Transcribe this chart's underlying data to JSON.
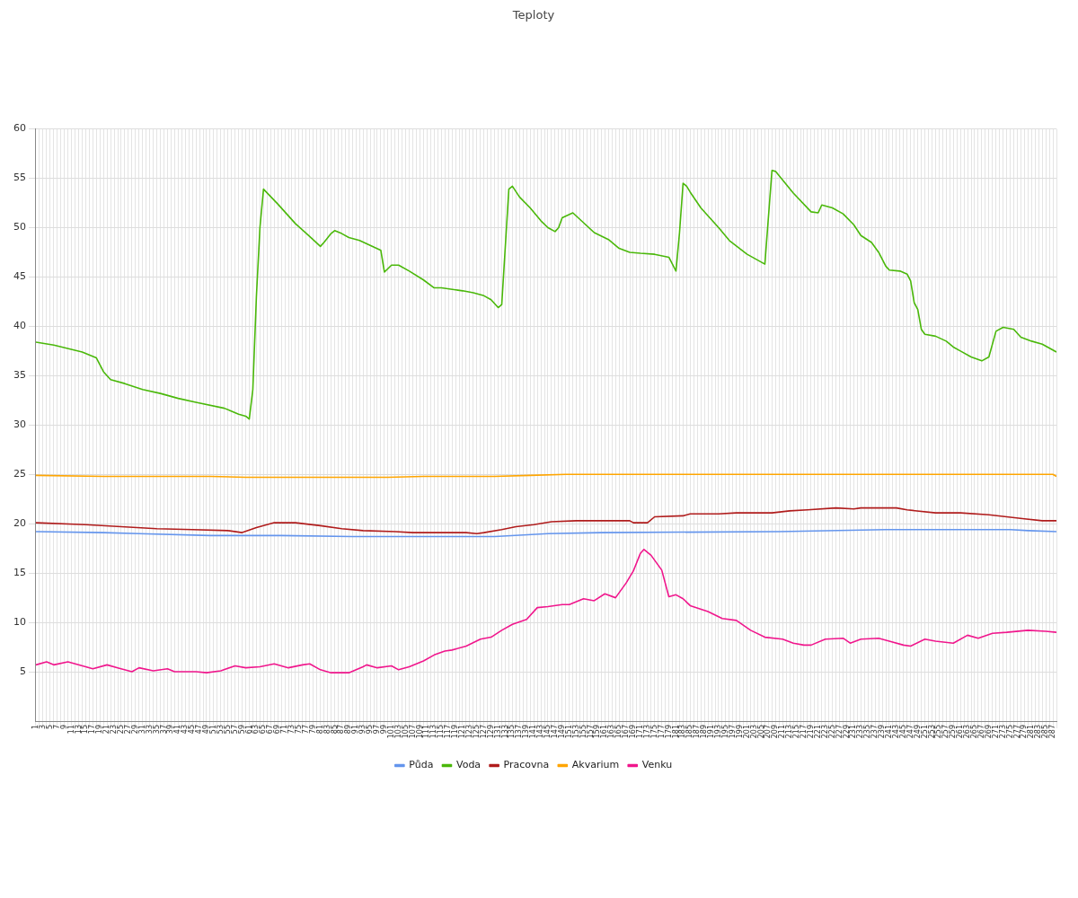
{
  "chart_data": {
    "type": "line",
    "title": "Teploty",
    "xlim": [
      1,
      288
    ],
    "ylim": [
      0,
      60
    ],
    "yticks": [
      5,
      10,
      15,
      20,
      25,
      30,
      35,
      40,
      45,
      50,
      55,
      60
    ],
    "xticks": [
      1,
      {
        "value": 2,
        "label": null
      },
      3,
      {
        "value": 4,
        "label": null
      },
      5,
      {
        "value": 6,
        "label": null
      },
      7,
      {
        "value": 8,
        "label": null
      },
      9,
      {
        "value": 10,
        "label": null
      },
      11,
      {
        "value": 12,
        "label": null
      },
      13,
      {
        "value": 14,
        "label": null
      },
      15,
      {
        "value": 16,
        "label": null
      },
      17,
      {
        "value": 18,
        "label": null
      },
      19,
      {
        "value": 20,
        "label": null
      },
      21,
      {
        "value": 22,
        "label": null
      },
      23,
      {
        "value": 24,
        "label": null
      },
      25,
      {
        "value": 26,
        "label": null
      },
      27,
      {
        "value": 28,
        "label": null
      },
      29,
      {
        "value": 30,
        "label": null
      },
      31,
      {
        "value": 32,
        "label": null
      },
      33,
      {
        "value": 34,
        "label": null
      },
      35,
      {
        "value": 36,
        "label": null
      },
      37,
      {
        "value": 38,
        "label": null
      },
      39,
      {
        "value": 40,
        "label": null
      },
      41,
      {
        "value": 42,
        "label": null
      },
      43,
      {
        "value": 44,
        "label": null
      },
      45,
      {
        "value": 46,
        "label": null
      },
      47,
      {
        "value": 48,
        "label": null
      },
      49,
      {
        "value": 50,
        "label": null
      },
      51,
      {
        "value": 52,
        "label": null
      },
      53,
      {
        "value": 54,
        "label": null
      },
      55,
      {
        "value": 56,
        "label": null
      },
      57,
      {
        "value": 58,
        "label": null
      },
      59,
      {
        "value": 60,
        "label": null
      },
      61,
      {
        "value": 62,
        "label": null
      },
      63,
      {
        "value": 64,
        "label": null
      },
      65,
      {
        "value": 66,
        "label": null
      },
      67,
      {
        "value": 68,
        "label": null
      },
      69,
      {
        "value": 70,
        "label": null
      },
      71,
      {
        "value": 72,
        "label": null
      },
      73,
      {
        "value": 74,
        "label": null
      },
      75,
      {
        "value": 76,
        "label": null
      },
      77,
      {
        "value": 78,
        "label": null
      },
      79,
      {
        "value": 80,
        "label": null
      },
      81,
      {
        "value": 82,
        "label": null
      },
      83,
      {
        "value": 84,
        "label": null
      },
      85,
      {
        "value": 86,
        "label": null
      },
      87,
      {
        "value": 88,
        "label": null
      },
      89,
      {
        "value": 90,
        "label": null
      },
      91,
      {
        "value": 92,
        "label": null
      },
      93,
      {
        "value": 94,
        "label": null
      },
      95,
      {
        "value": 96,
        "label": null
      },
      97,
      {
        "value": 98,
        "label": null
      },
      99,
      {
        "value": 100,
        "label": null
      },
      101,
      {
        "value": 102,
        "label": null
      },
      103,
      {
        "value": 104,
        "label": null
      },
      105,
      {
        "value": 106,
        "label": null
      },
      107,
      {
        "value": 108,
        "label": null
      },
      109,
      {
        "value": 110,
        "label": null
      },
      111,
      {
        "value": 112,
        "label": null
      },
      113,
      {
        "value": 114,
        "label": null
      },
      115,
      {
        "value": 116,
        "label": null
      },
      117,
      {
        "value": 118,
        "label": null
      },
      119,
      {
        "value": 120,
        "label": null
      },
      121,
      {
        "value": 122,
        "label": null
      },
      123,
      {
        "value": 124,
        "label": null
      },
      125,
      {
        "value": 126,
        "label": null
      },
      127,
      {
        "value": 128,
        "label": null
      },
      129,
      {
        "value": 130,
        "label": null
      },
      131,
      {
        "value": 132,
        "label": null
      },
      133,
      {
        "value": 134,
        "label": null
      },
      135,
      {
        "value": 136,
        "label": null
      },
      137,
      {
        "value": 138,
        "label": null
      },
      139,
      {
        "value": 140,
        "label": null
      },
      141,
      {
        "value": 142,
        "label": null
      },
      143,
      {
        "value": 144,
        "label": null
      },
      145,
      {
        "value": 146,
        "label": null
      },
      147,
      {
        "value": 148,
        "label": null
      },
      149,
      {
        "value": 150,
        "label": null
      },
      151,
      {
        "value": 152,
        "label": null
      },
      153,
      {
        "value": 154,
        "label": null
      },
      155,
      {
        "value": 156,
        "label": null
      },
      157,
      {
        "value": 158,
        "label": null
      },
      159,
      {
        "value": 160,
        "label": null
      },
      161,
      {
        "value": 162,
        "label": null
      },
      163,
      {
        "value": 164,
        "label": null
      },
      165,
      {
        "value": 166,
        "label": null
      },
      167,
      {
        "value": 168,
        "label": null
      },
      169,
      {
        "value": 170,
        "label": null
      },
      171,
      {
        "value": 172,
        "label": null
      },
      173,
      {
        "value": 174,
        "label": null
      },
      175,
      {
        "value": 176,
        "label": null
      },
      177,
      {
        "value": 178,
        "label": null
      },
      179,
      {
        "value": 180,
        "label": null
      },
      181,
      {
        "value": 182,
        "label": null
      },
      183,
      {
        "value": 184,
        "label": null
      },
      185,
      {
        "value": 186,
        "label": null
      },
      187,
      {
        "value": 188,
        "label": null
      },
      189,
      {
        "value": 190,
        "label": null
      },
      191,
      {
        "value": 192,
        "label": null
      },
      193,
      {
        "value": 194,
        "label": null
      },
      195,
      {
        "value": 196,
        "label": null
      },
      197,
      {
        "value": 198,
        "label": null
      },
      199,
      {
        "value": 200,
        "label": null
      },
      201,
      {
        "value": 202,
        "label": null
      },
      203,
      {
        "value": 204,
        "label": null
      },
      205,
      {
        "value": 206,
        "label": null
      },
      207,
      {
        "value": 208,
        "label": null
      },
      209,
      {
        "value": 210,
        "label": null
      },
      211,
      {
        "value": 212,
        "label": null
      },
      213,
      {
        "value": 214,
        "label": null
      },
      215,
      {
        "value": 216,
        "label": null
      },
      217,
      {
        "value": 218,
        "label": null
      },
      219,
      {
        "value": 220,
        "label": null
      },
      221,
      {
        "value": 222,
        "label": null
      },
      223,
      {
        "value": 224,
        "label": null
      },
      225,
      {
        "value": 226,
        "label": null
      },
      227,
      {
        "value": 228,
        "label": null
      },
      229,
      {
        "value": 230,
        "label": null
      },
      231,
      {
        "value": 232,
        "label": null
      },
      233,
      {
        "value": 234,
        "label": null
      },
      235,
      {
        "value": 236,
        "label": null
      },
      237,
      {
        "value": 238,
        "label": null
      },
      239,
      {
        "value": 240,
        "label": null
      },
      241,
      {
        "value": 242,
        "label": null
      },
      243,
      {
        "value": 244,
        "label": null
      },
      245,
      {
        "value": 246,
        "label": null
      },
      247,
      {
        "value": 248,
        "label": null
      },
      249,
      {
        "value": 250,
        "label": null
      },
      251,
      {
        "value": 252,
        "label": null
      },
      253,
      {
        "value": 254,
        "label": null
      },
      255,
      {
        "value": 256,
        "label": null
      },
      257,
      {
        "value": 258,
        "label": null
      },
      259,
      {
        "value": 260,
        "label": null
      },
      261,
      {
        "value": 262,
        "label": null
      },
      263,
      {
        "value": 264,
        "label": null
      },
      265,
      {
        "value": 266,
        "label": null
      },
      267,
      {
        "value": 268,
        "label": null
      },
      269,
      {
        "value": 270,
        "label": null
      },
      271,
      {
        "value": 272,
        "label": null
      },
      273,
      {
        "value": 274,
        "label": null
      },
      275,
      {
        "value": 276,
        "label": null
      },
      277,
      {
        "value": 278,
        "label": null
      },
      279,
      {
        "value": 280,
        "label": null
      },
      281,
      {
        "value": 282,
        "label": null
      },
      283,
      {
        "value": 284,
        "label": null
      },
      285,
      {
        "value": 286,
        "label": null
      },
      287,
      {
        "value": 288,
        "label": null
      }
    ],
    "grid": true,
    "legend": "bottom",
    "marker": "none",
    "line_style": "solid",
    "series": [
      {
        "name": "Půda",
        "color": "#6495ed",
        "x": [
          1,
          20,
          30,
          50,
          70,
          90,
          130,
          145,
          160,
          210,
          240,
          275,
          280,
          288
        ],
        "values": [
          19.2,
          19.1,
          19.0,
          18.8,
          18.8,
          18.7,
          18.7,
          19.0,
          19.1,
          19.2,
          19.4,
          19.4,
          19.3,
          19.2
        ]
      },
      {
        "name": "Voda",
        "color": "#4ab80a",
        "x": [
          1,
          6,
          14,
          18,
          20,
          22,
          26,
          31,
          36,
          41,
          46,
          54,
          58,
          60,
          61,
          62,
          63,
          64,
          65,
          69,
          74,
          78,
          81,
          82,
          84,
          85,
          87,
          89,
          92,
          95,
          98,
          99,
          101,
          103,
          106,
          110,
          113,
          115,
          119,
          121,
          124,
          127,
          129,
          131,
          132,
          134,
          135,
          137,
          140,
          143,
          145,
          147,
          148,
          149,
          152,
          155,
          158,
          162,
          165,
          168,
          171,
          175,
          179,
          181,
          182,
          183,
          184,
          185,
          188,
          193,
          196,
          201,
          206,
          208,
          209,
          214,
          219,
          221,
          222,
          225,
          228,
          231,
          233,
          236,
          238,
          240,
          241,
          244,
          246,
          247,
          248,
          249,
          250,
          251,
          254,
          257,
          259,
          261,
          264,
          267,
          269,
          271,
          273,
          276,
          278,
          281,
          284,
          288
        ],
        "values": [
          38.4,
          38.1,
          37.4,
          36.8,
          35.4,
          34.6,
          34.2,
          33.6,
          33.2,
          32.7,
          32.3,
          31.7,
          31.1,
          30.9,
          30.6,
          33.6,
          43.0,
          50.0,
          53.9,
          52.4,
          50.4,
          49.1,
          48.1,
          48.5,
          49.4,
          49.7,
          49.4,
          49.0,
          48.7,
          48.2,
          47.7,
          45.5,
          46.2,
          46.2,
          45.6,
          44.7,
          43.9,
          43.9,
          43.7,
          43.6,
          43.4,
          43.1,
          42.7,
          41.9,
          42.2,
          53.9,
          54.2,
          53.1,
          52.0,
          50.7,
          50.0,
          49.6,
          50.0,
          51.0,
          51.5,
          50.5,
          49.5,
          48.8,
          47.9,
          47.5,
          47.4,
          47.3,
          47.0,
          45.6,
          49.5,
          54.5,
          54.2,
          53.6,
          52.0,
          50.0,
          48.7,
          47.3,
          46.3,
          55.8,
          55.7,
          53.5,
          51.6,
          51.5,
          52.3,
          52.0,
          51.4,
          50.3,
          49.2,
          48.5,
          47.5,
          46.1,
          45.7,
          45.6,
          45.3,
          44.6,
          42.4,
          41.7,
          39.7,
          39.2,
          39.0,
          38.5,
          37.9,
          37.5,
          36.9,
          36.5,
          36.9,
          39.5,
          39.9,
          39.7,
          38.9,
          38.5,
          38.2,
          37.4
        ]
      },
      {
        "name": "Pracovna",
        "color": "#b01c1c",
        "x": [
          1,
          15,
          25,
          35,
          45,
          55,
          59,
          63,
          68,
          74,
          81,
          87,
          93,
          102,
          107,
          122,
          125,
          127,
          132,
          136,
          141,
          146,
          153,
          168,
          169,
          173,
          175,
          183,
          185,
          193,
          198,
          208,
          213,
          218,
          226,
          231,
          233,
          243,
          246,
          254,
          261,
          269,
          274,
          279,
          284,
          288
        ],
        "values": [
          20.1,
          19.9,
          19.7,
          19.5,
          19.4,
          19.3,
          19.1,
          19.6,
          20.1,
          20.1,
          19.8,
          19.5,
          19.3,
          19.2,
          19.1,
          19.1,
          19.0,
          19.1,
          19.4,
          19.7,
          19.9,
          20.2,
          20.3,
          20.3,
          20.1,
          20.1,
          20.7,
          20.8,
          21.0,
          21.0,
          21.1,
          21.1,
          21.3,
          21.4,
          21.6,
          21.5,
          21.6,
          21.6,
          21.4,
          21.1,
          21.1,
          20.9,
          20.7,
          20.5,
          20.3,
          20.3
        ]
      },
      {
        "name": "Akvarium",
        "color": "#ffa500",
        "x": [
          1,
          20,
          50,
          60,
          100,
          110,
          130,
          140,
          150,
          180,
          200,
          287,
          288
        ],
        "values": [
          24.9,
          24.8,
          24.8,
          24.7,
          24.7,
          24.8,
          24.8,
          24.9,
          25.0,
          25.0,
          25.0,
          25.0,
          24.8
        ]
      },
      {
        "name": "Venku",
        "color": "#f0168c",
        "x": [
          1,
          4,
          6,
          10,
          15,
          17,
          21,
          24,
          28,
          30,
          34,
          38,
          40,
          46,
          49,
          53,
          57,
          60,
          64,
          68,
          72,
          76,
          78,
          81,
          84,
          89,
          93,
          94,
          97,
          101,
          103,
          106,
          110,
          113,
          116,
          118,
          122,
          126,
          129,
          132,
          135,
          139,
          142,
          145,
          149,
          151,
          155,
          158,
          161,
          164,
          167,
          169,
          171,
          172,
          174,
          177,
          179,
          181,
          183,
          185,
          190,
          194,
          198,
          202,
          206,
          211,
          214,
          217,
          219,
          223,
          228,
          230,
          233,
          238,
          241,
          245,
          247,
          251,
          254,
          259,
          263,
          266,
          270,
          274,
          280,
          285,
          288
        ],
        "values": [
          5.7,
          6.0,
          5.7,
          6.0,
          5.5,
          5.3,
          5.7,
          5.4,
          5.0,
          5.4,
          5.1,
          5.3,
          5.0,
          5.0,
          4.9,
          5.1,
          5.6,
          5.4,
          5.5,
          5.8,
          5.4,
          5.7,
          5.8,
          5.2,
          4.9,
          4.9,
          5.5,
          5.7,
          5.4,
          5.6,
          5.2,
          5.5,
          6.1,
          6.7,
          7.1,
          7.2,
          7.6,
          8.3,
          8.5,
          9.2,
          9.8,
          10.3,
          11.5,
          11.6,
          11.8,
          11.8,
          12.4,
          12.2,
          12.9,
          12.5,
          14.0,
          15.2,
          17.0,
          17.4,
          16.8,
          15.3,
          12.6,
          12.8,
          12.4,
          11.7,
          11.1,
          10.4,
          10.2,
          9.2,
          8.5,
          8.3,
          7.9,
          7.7,
          7.7,
          8.3,
          8.4,
          7.9,
          8.3,
          8.4,
          8.1,
          7.7,
          7.6,
          8.3,
          8.1,
          7.9,
          8.7,
          8.4,
          8.9,
          9.0,
          9.2,
          9.1,
          9.0
        ]
      }
    ]
  }
}
